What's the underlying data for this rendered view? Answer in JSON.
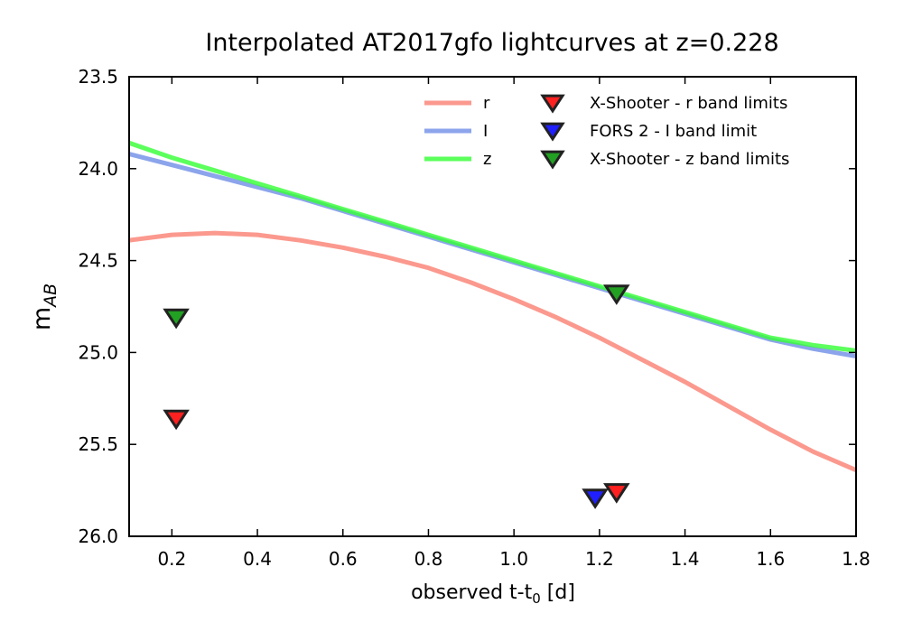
{
  "chart_data": {
    "type": "line",
    "title": "Interpolated AT2017gfo lightcurves at z=0.228",
    "xlabel": "observed t-t",
    "xlabel_sub": "0",
    "xlabel_unit": " [d]",
    "ylabel": "m",
    "ylabel_sub": "AB",
    "xlim": [
      0.1,
      1.8
    ],
    "ylim": [
      26.0,
      23.5
    ],
    "y_inverted": true,
    "xticks": [
      0.2,
      0.4,
      0.6,
      0.8,
      1.0,
      1.2,
      1.4,
      1.6,
      1.8
    ],
    "xtick_labels": [
      "0.2",
      "0.4",
      "0.6",
      "0.8",
      "1.0",
      "1.2",
      "1.4",
      "1.6",
      "1.8"
    ],
    "yticks": [
      23.5,
      24.0,
      24.5,
      25.0,
      25.5,
      26.0
    ],
    "ytick_labels": [
      "23.5",
      "24.0",
      "24.5",
      "25.0",
      "25.5",
      "26.0"
    ],
    "grid": false,
    "series": [
      {
        "name": "r",
        "color": "#fa8072",
        "x": [
          0.1,
          0.2,
          0.3,
          0.4,
          0.5,
          0.6,
          0.7,
          0.8,
          0.9,
          1.0,
          1.1,
          1.2,
          1.3,
          1.4,
          1.5,
          1.6,
          1.7,
          1.8
        ],
        "y": [
          24.39,
          24.36,
          24.35,
          24.36,
          24.39,
          24.43,
          24.48,
          24.54,
          24.62,
          24.71,
          24.81,
          24.92,
          25.04,
          25.16,
          25.29,
          25.42,
          25.54,
          25.64
        ]
      },
      {
        "name": "I",
        "color": "#6f8de6",
        "x": [
          0.1,
          0.2,
          0.3,
          0.4,
          0.5,
          0.6,
          0.7,
          0.8,
          0.9,
          1.0,
          1.1,
          1.2,
          1.3,
          1.4,
          1.5,
          1.6,
          1.7,
          1.8
        ],
        "y": [
          23.92,
          23.98,
          24.04,
          24.1,
          24.16,
          24.23,
          24.3,
          24.37,
          24.44,
          24.51,
          24.58,
          24.65,
          24.72,
          24.79,
          24.86,
          24.93,
          24.98,
          25.02
        ]
      },
      {
        "name": "z",
        "color": "#33ff33",
        "x": [
          0.1,
          0.2,
          0.3,
          0.4,
          0.5,
          0.6,
          0.7,
          0.8,
          0.9,
          1.0,
          1.1,
          1.2,
          1.3,
          1.4,
          1.5,
          1.6,
          1.7,
          1.8
        ],
        "y": [
          23.86,
          23.94,
          24.01,
          24.08,
          24.15,
          24.22,
          24.29,
          24.36,
          24.43,
          24.5,
          24.57,
          24.64,
          24.71,
          24.78,
          24.85,
          24.92,
          24.96,
          24.99
        ]
      }
    ],
    "markers": [
      {
        "name": "X-Shooter - r band limits",
        "color": "#ff2020",
        "points": [
          [
            0.21,
            25.35
          ],
          [
            1.24,
            25.75
          ]
        ]
      },
      {
        "name": "FORS 2 - I band limit",
        "color": "#2020ff",
        "points": [
          [
            1.19,
            25.78
          ]
        ]
      },
      {
        "name": "X-Shooter - z band limits",
        "color": "#22a022",
        "points": [
          [
            0.21,
            24.8
          ],
          [
            1.24,
            24.67
          ]
        ]
      }
    ],
    "legend": {
      "placement": "top-right",
      "lines": [
        "r",
        "I",
        "z"
      ],
      "markers": [
        "X-Shooter - r band limits",
        "FORS 2 - I band limit",
        "X-Shooter - z band limits"
      ]
    }
  }
}
